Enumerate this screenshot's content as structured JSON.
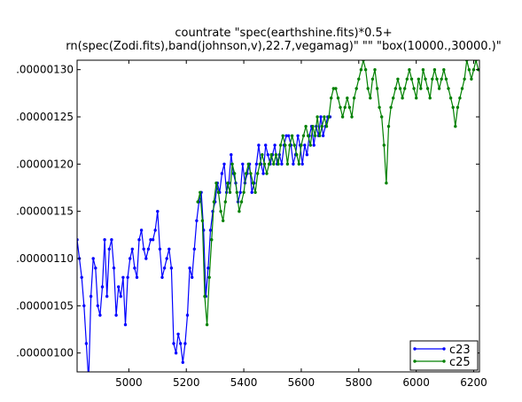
{
  "chart_data": {
    "type": "line",
    "title_lines": [
      "countrate \"spec(earthshine.fits)*0.5+",
      "rn(spec(Zodi.fits),band(johnson,v),22.7,vegamag)\" \"\" \"box(10000.,30000.)\""
    ],
    "xlabel": "",
    "ylabel": "",
    "xlim": [
      4820,
      6220
    ],
    "ylim": [
      9.8e-07,
      1.31e-06
    ],
    "x_ticks": [
      5000,
      5200,
      5400,
      5600,
      5800,
      6000,
      6200
    ],
    "x_tick_labels": [
      "5000",
      "5200",
      "5400",
      "5600",
      "5800",
      "6000",
      "6200"
    ],
    "y_ticks": [
      1e-06,
      1.05e-06,
      1.1e-06,
      1.15e-06,
      1.2e-06,
      1.25e-06,
      1.3e-06
    ],
    "y_tick_labels": [
      ".00000100",
      ".00000105",
      ".00000110",
      ".00000115",
      ".00000120",
      ".00000125",
      ".00000130"
    ],
    "grid": false,
    "legend_position": "bottom-right",
    "series": [
      {
        "name": "c23",
        "color": "#0000ff",
        "x": [
          4820,
          4828,
          4836,
          4844,
          4852,
          4860,
          4868,
          4876,
          4884,
          4892,
          4900,
          4908,
          4916,
          4924,
          4932,
          4940,
          4948,
          4956,
          4964,
          4972,
          4980,
          4988,
          4996,
          5004,
          5012,
          5020,
          5028,
          5036,
          5044,
          5052,
          5060,
          5068,
          5076,
          5084,
          5092,
          5100,
          5108,
          5116,
          5124,
          5132,
          5140,
          5148,
          5156,
          5164,
          5172,
          5180,
          5188,
          5196,
          5204,
          5212,
          5220,
          5228,
          5236,
          5244,
          5252,
          5260,
          5268,
          5276,
          5284,
          5292,
          5300,
          5308,
          5316,
          5324,
          5332,
          5340,
          5348,
          5356,
          5364,
          5372,
          5380,
          5388,
          5396,
          5404,
          5412,
          5420,
          5428,
          5436,
          5444,
          5452,
          5460,
          5468,
          5476,
          5484,
          5492,
          5500,
          5508,
          5516,
          5524,
          5532,
          5540,
          5548,
          5556,
          5564,
          5572,
          5580,
          5588,
          5596,
          5604,
          5612,
          5620,
          5628,
          5636,
          5644,
          5652,
          5660,
          5668,
          5676,
          5684,
          5692,
          5700
        ],
        "y": [
          1.12e-06,
          1.1e-06,
          1.08e-06,
          1.05e-06,
          1.01e-06,
          9.7e-07,
          1.06e-06,
          1.1e-06,
          1.09e-06,
          1.05e-06,
          1.04e-06,
          1.07e-06,
          1.12e-06,
          1.06e-06,
          1.11e-06,
          1.12e-06,
          1.09e-06,
          1.04e-06,
          1.07e-06,
          1.06e-06,
          1.08e-06,
          1.03e-06,
          1.08e-06,
          1.1e-06,
          1.11e-06,
          1.09e-06,
          1.08e-06,
          1.12e-06,
          1.13e-06,
          1.11e-06,
          1.1e-06,
          1.11e-06,
          1.12e-06,
          1.12e-06,
          1.13e-06,
          1.15e-06,
          1.11e-06,
          1.08e-06,
          1.09e-06,
          1.1e-06,
          1.11e-06,
          1.09e-06,
          1.01e-06,
          1e-06,
          1.02e-06,
          1.01e-06,
          9.9e-07,
          1.01e-06,
          1.04e-06,
          1.09e-06,
          1.08e-06,
          1.11e-06,
          1.14e-06,
          1.16e-06,
          1.17e-06,
          1.13e-06,
          1.06e-06,
          1.09e-06,
          1.13e-06,
          1.15e-06,
          1.16e-06,
          1.18e-06,
          1.17e-06,
          1.19e-06,
          1.2e-06,
          1.17e-06,
          1.18e-06,
          1.21e-06,
          1.19e-06,
          1.18e-06,
          1.16e-06,
          1.17e-06,
          1.2e-06,
          1.18e-06,
          1.19e-06,
          1.2e-06,
          1.17e-06,
          1.18e-06,
          1.2e-06,
          1.22e-06,
          1.2e-06,
          1.19e-06,
          1.22e-06,
          1.21e-06,
          1.2e-06,
          1.21e-06,
          1.22e-06,
          1.2e-06,
          1.21e-06,
          1.2e-06,
          1.22e-06,
          1.23e-06,
          1.23e-06,
          1.22e-06,
          1.2e-06,
          1.21e-06,
          1.23e-06,
          1.22e-06,
          1.2e-06,
          1.22e-06,
          1.21e-06,
          1.23e-06,
          1.24e-06,
          1.22e-06,
          1.24e-06,
          1.23e-06,
          1.25e-06,
          1.23e-06,
          1.24e-06,
          1.25e-06,
          1.25e-06
        ]
      },
      {
        "name": "c25",
        "color": "#008000",
        "x": [
          5240,
          5248,
          5256,
          5264,
          5272,
          5280,
          5288,
          5296,
          5304,
          5312,
          5320,
          5328,
          5336,
          5344,
          5352,
          5360,
          5368,
          5376,
          5384,
          5392,
          5400,
          5408,
          5416,
          5424,
          5432,
          5440,
          5448,
          5456,
          5464,
          5472,
          5480,
          5488,
          5496,
          5504,
          5512,
          5520,
          5528,
          5536,
          5544,
          5552,
          5560,
          5568,
          5576,
          5584,
          5592,
          5600,
          5608,
          5616,
          5624,
          5632,
          5640,
          5648,
          5656,
          5664,
          5672,
          5680,
          5688,
          5696,
          5704,
          5712,
          5720,
          5728,
          5736,
          5744,
          5752,
          5760,
          5768,
          5776,
          5784,
          5792,
          5800,
          5808,
          5816,
          5824,
          5832,
          5840,
          5848,
          5856,
          5864,
          5872,
          5880,
          5888,
          5896,
          5904,
          5912,
          5920,
          5928,
          5936,
          5944,
          5952,
          5960,
          5968,
          5976,
          5984,
          5992,
          6000,
          6008,
          6016,
          6024,
          6032,
          6040,
          6048,
          6056,
          6064,
          6072,
          6080,
          6088,
          6096,
          6104,
          6112,
          6120,
          6128,
          6136,
          6144,
          6152,
          6160,
          6168,
          6176,
          6184,
          6192,
          6200,
          6208,
          6216,
          6220
        ],
        "y": [
          1.16e-06,
          1.17e-06,
          1.14e-06,
          1.06e-06,
          1.03e-06,
          1.08e-06,
          1.12e-06,
          1.16e-06,
          1.18e-06,
          1.17e-06,
          1.15e-06,
          1.14e-06,
          1.16e-06,
          1.18e-06,
          1.17e-06,
          1.2e-06,
          1.19e-06,
          1.17e-06,
          1.15e-06,
          1.16e-06,
          1.17e-06,
          1.19e-06,
          1.2e-06,
          1.19e-06,
          1.18e-06,
          1.17e-06,
          1.19e-06,
          1.2e-06,
          1.21e-06,
          1.2e-06,
          1.19e-06,
          1.2e-06,
          1.21e-06,
          1.2e-06,
          1.21e-06,
          1.2e-06,
          1.22e-06,
          1.23e-06,
          1.22e-06,
          1.2e-06,
          1.22e-06,
          1.23e-06,
          1.22e-06,
          1.21e-06,
          1.2e-06,
          1.22e-06,
          1.23e-06,
          1.24e-06,
          1.23e-06,
          1.22e-06,
          1.24e-06,
          1.23e-06,
          1.25e-06,
          1.23e-06,
          1.24e-06,
          1.25e-06,
          1.24e-06,
          1.25e-06,
          1.27e-06,
          1.28e-06,
          1.28e-06,
          1.27e-06,
          1.26e-06,
          1.25e-06,
          1.26e-06,
          1.27e-06,
          1.26e-06,
          1.25e-06,
          1.27e-06,
          1.28e-06,
          1.29e-06,
          1.3e-06,
          1.31e-06,
          1.3e-06,
          1.28e-06,
          1.27e-06,
          1.29e-06,
          1.3e-06,
          1.28e-06,
          1.26e-06,
          1.25e-06,
          1.22e-06,
          1.18e-06,
          1.24e-06,
          1.26e-06,
          1.27e-06,
          1.28e-06,
          1.29e-06,
          1.28e-06,
          1.27e-06,
          1.28e-06,
          1.29e-06,
          1.3e-06,
          1.29e-06,
          1.28e-06,
          1.27e-06,
          1.29e-06,
          1.28e-06,
          1.3e-06,
          1.29e-06,
          1.28e-06,
          1.27e-06,
          1.29e-06,
          1.3e-06,
          1.29e-06,
          1.28e-06,
          1.29e-06,
          1.3e-06,
          1.29e-06,
          1.28e-06,
          1.27e-06,
          1.26e-06,
          1.24e-06,
          1.26e-06,
          1.27e-06,
          1.28e-06,
          1.29e-06,
          1.31e-06,
          1.3e-06,
          1.29e-06,
          1.3e-06,
          1.31e-06,
          1.3e-06,
          1.3e-06
        ]
      }
    ]
  }
}
